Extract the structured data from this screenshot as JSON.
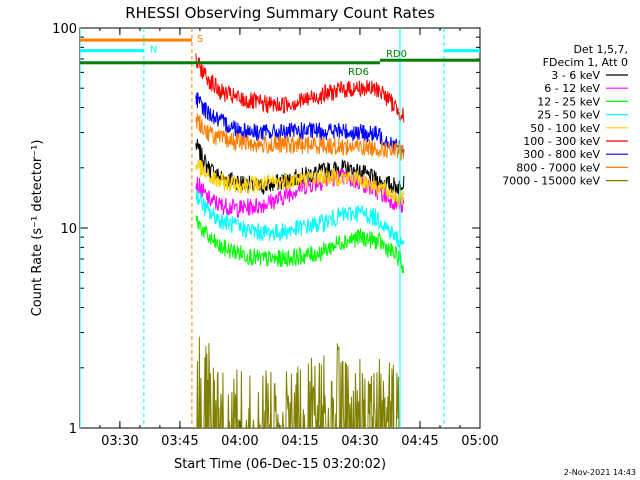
{
  "chart_data": {
    "type": "line",
    "title": "RHESSI Observing Summary Count Rates",
    "xlabel": "Start Time (06-Dec-15 03:20:02)",
    "ylabel": "Count Rate (s⁻¹ detector⁻¹)",
    "yscale": "log",
    "ylim": [
      1,
      100
    ],
    "xlim": [
      "03:20:02",
      "05:00:00"
    ],
    "x_ticks": [
      "03:30",
      "03:45",
      "04:00",
      "04:15",
      "04:30",
      "04:45",
      "05:00"
    ],
    "y_ticks": [
      "1",
      "10",
      "100"
    ],
    "legend_header": [
      "Det 1,5,7,",
      "FDecim 1, Att 0"
    ],
    "legend_placement": "right",
    "series": [
      {
        "name": "3 - 6 keV",
        "color": "#000000",
        "x": [
          "03:49",
          "03:52",
          "03:55",
          "04:00",
          "04:05",
          "04:10",
          "04:15",
          "04:20",
          "04:25",
          "04:30",
          "04:35",
          "04:40",
          "04:41"
        ],
        "y": [
          26,
          20,
          18,
          17,
          16,
          17,
          18,
          19,
          20,
          19,
          17,
          16,
          18
        ]
      },
      {
        "name": "6 - 12 keV",
        "color": "#ff00ff",
        "x": [
          "03:49",
          "03:52",
          "03:55",
          "04:00",
          "04:05",
          "04:10",
          "04:15",
          "04:20",
          "04:25",
          "04:30",
          "04:35",
          "04:40",
          "04:41"
        ],
        "y": [
          17,
          14,
          13,
          12.5,
          13,
          14,
          16,
          17,
          18,
          17,
          15,
          13,
          13
        ]
      },
      {
        "name": "12 - 25 keV",
        "color": "#00ff00",
        "x": [
          "03:49",
          "03:52",
          "03:55",
          "04:00",
          "04:05",
          "04:10",
          "04:15",
          "04:20",
          "04:25",
          "04:30",
          "04:35",
          "04:40",
          "04:41"
        ],
        "y": [
          11,
          9,
          8,
          7.5,
          7,
          7,
          7.2,
          7.5,
          8.5,
          9,
          8.5,
          7,
          6
        ]
      },
      {
        "name": "25 - 50 keV",
        "color": "#00ffff",
        "x": [
          "03:49",
          "03:52",
          "03:55",
          "04:00",
          "04:05",
          "04:10",
          "04:15",
          "04:20",
          "04:25",
          "04:30",
          "04:35",
          "04:40",
          "04:41"
        ],
        "y": [
          15,
          12,
          11,
          10,
          9.5,
          9.5,
          10,
          10.5,
          11.5,
          12,
          11,
          8.5,
          8.5
        ]
      },
      {
        "name": "50 - 100 keV",
        "color": "#ffd000",
        "x": [
          "03:49",
          "03:52",
          "03:55",
          "04:00",
          "04:05",
          "04:10",
          "04:15",
          "04:20",
          "04:25",
          "04:30",
          "04:35",
          "04:40",
          "04:41"
        ],
        "y": [
          21,
          18,
          17,
          16.5,
          16.5,
          17,
          17.5,
          18,
          18,
          17.5,
          16,
          14,
          14
        ]
      },
      {
        "name": "100 - 300 keV",
        "color": "#ff0000",
        "x": [
          "03:49",
          "03:52",
          "03:55",
          "04:00",
          "04:05",
          "04:10",
          "04:15",
          "04:20",
          "04:25",
          "04:30",
          "04:35",
          "04:40",
          "04:41"
        ],
        "y": [
          68,
          56,
          48,
          44,
          42,
          41,
          43,
          46,
          49,
          50,
          49,
          38,
          36
        ]
      },
      {
        "name": "300 - 800 keV",
        "color": "#0000ff",
        "x": [
          "03:49",
          "03:52",
          "03:55",
          "04:00",
          "04:05",
          "04:10",
          "04:15",
          "04:20",
          "04:25",
          "04:30",
          "04:35",
          "04:40",
          "04:41"
        ],
        "y": [
          44,
          38,
          34,
          31,
          30,
          30,
          30.5,
          30.5,
          30.5,
          30,
          29,
          25,
          24
        ]
      },
      {
        "name": "800 - 7000 keV",
        "color": "#ff8000",
        "x": [
          "03:49",
          "03:52",
          "03:55",
          "04:00",
          "04:05",
          "04:10",
          "04:15",
          "04:20",
          "04:25",
          "04:30",
          "04:35",
          "04:40",
          "04:41"
        ],
        "y": [
          35,
          30,
          28,
          27,
          26,
          26,
          26,
          26,
          25.5,
          25.5,
          25,
          24,
          24
        ]
      },
      {
        "name": "7000 - 15000 keV",
        "color": "#808000",
        "x": [
          "03:49",
          "03:50",
          "03:52",
          "03:55",
          "04:00",
          "04:10",
          "04:15",
          "04:20",
          "04:25",
          "04:30",
          "04:35",
          "04:40"
        ],
        "y": [
          1.9,
          2.3,
          1.9,
          1.5,
          1.3,
          1.3,
          1.7,
          1.6,
          1.8,
          1.7,
          1.6,
          1.5
        ]
      }
    ],
    "status_bars": [
      {
        "label": "S",
        "color": "#ff8000",
        "start": "03:20:02",
        "end": "03:48",
        "y": 87
      },
      {
        "label": "N",
        "color": "#00ffff",
        "start": "03:20:02",
        "end": "03:36",
        "y": 77
      },
      {
        "label": "",
        "color": "#00ffff",
        "start": "04:51",
        "end": "05:00",
        "y": 77
      },
      {
        "label": "RD6",
        "color": "#008000",
        "start": "03:20:02",
        "end": "04:35",
        "y": 67
      },
      {
        "label": "RD0",
        "color": "#008000",
        "start": "04:35",
        "end": "05:00",
        "y": 69
      }
    ],
    "vertical_markers": [
      {
        "x": "03:20:02",
        "color": "#00ffff",
        "style": "solid"
      },
      {
        "x": "03:36",
        "color": "#00ffff",
        "style": "dashed"
      },
      {
        "x": "03:48",
        "color": "#ff8000",
        "style": "dashed"
      },
      {
        "x": "04:40",
        "color": "#00ffff",
        "style": "solid"
      },
      {
        "x": "04:51",
        "color": "#00ffff",
        "style": "dashed"
      }
    ]
  },
  "footer": {
    "timestamp": "2-Nov-2021 14:43"
  }
}
